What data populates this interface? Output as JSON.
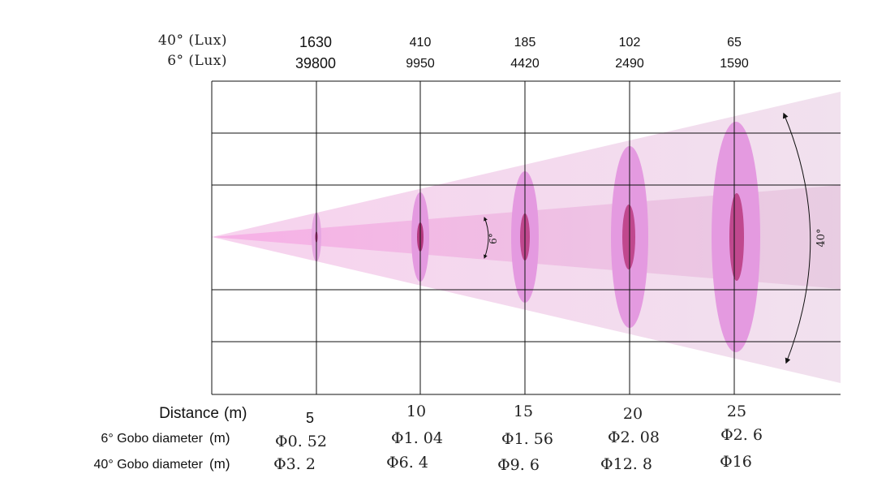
{
  "header": {
    "row1_label": "40° (Lux)",
    "row2_label": "6° (Lux)",
    "lux_40": [
      "1630",
      "410",
      "185",
      "102",
      "65"
    ],
    "lux_6": [
      "39800",
      "9950",
      "4420",
      "2490",
      "1590"
    ]
  },
  "beam": {
    "narrow_angle_label": "6°",
    "wide_angle_label": "40°"
  },
  "footer": {
    "distance_label": "Distance",
    "distance_unit": "(m)",
    "gobo6_label": "6° Gobo diameter",
    "gobo6_unit": "(m)",
    "gobo40_label": "40° Gobo diameter",
    "gobo40_unit": "(m)",
    "distances": [
      "5",
      "10",
      "15",
      "20",
      "25"
    ],
    "gobo6_diameters": [
      "Φ0. 52",
      "Φ1. 04",
      "Φ1. 56",
      "Φ2. 08",
      "Φ2. 6"
    ],
    "gobo40_diameters": [
      "Φ3. 2",
      "Φ6. 4",
      "Φ9. 6",
      "Φ12. 8",
      "Φ16"
    ]
  },
  "colors": {
    "wide_beam": "#f2d8ec",
    "narrow_beam": "#f5b8e6",
    "wide_spot": "#e49ae0",
    "narrow_spot": "#c0488e",
    "grid": "#111111"
  }
}
